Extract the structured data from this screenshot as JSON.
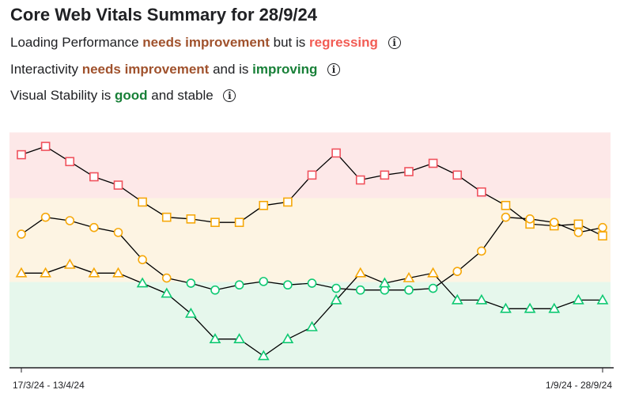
{
  "header": {
    "title": "Core Web Vitals Summary for 28/9/24"
  },
  "metrics": [
    {
      "label": "Loading Performance",
      "connector1": "",
      "status": "needs improvement",
      "status_color": "#a0522d",
      "connector2": "but is",
      "trend": "regressing",
      "trend_color": "#f25c54",
      "info_icon": "info-icon"
    },
    {
      "label": "Interactivity",
      "connector1": "",
      "status": "needs improvement",
      "status_color": "#a0522d",
      "connector2": "and is",
      "trend": "improving",
      "trend_color": "#188038",
      "info_icon": "info-icon"
    },
    {
      "label": "Visual Stability is",
      "connector1": "",
      "status": "good",
      "status_color": "#188038",
      "connector2": "and stable",
      "trend": "",
      "trend_color": "#202124",
      "info_icon": "info-icon"
    }
  ],
  "chart_data": {
    "type": "line",
    "x_range_labels": [
      "17/3/24 - 13/4/24",
      "1/9/24 - 28/9/24"
    ],
    "ylim": [
      0,
      100
    ],
    "bands": [
      {
        "from": 0,
        "to": 35,
        "color": "#e6f7ec"
      },
      {
        "from": 35,
        "to": 69.2,
        "color": "#fdf4e3"
      },
      {
        "from": 69.2,
        "to": 96,
        "color": "#fde8e8"
      }
    ],
    "status_colors": {
      "good": "#0ec972",
      "ni": "#f6a80a",
      "poor": "#f0525d"
    },
    "series": [
      {
        "marker": "square",
        "values": [
          86.9,
          90.3,
          84.1,
          77.9,
          74.5,
          67.6,
          61.4,
          60.7,
          59.3,
          59.3,
          66.2,
          67.6,
          78.6,
          87.6,
          76.6,
          78.6,
          80.0,
          83.4,
          78.6,
          71.7,
          66.2,
          58.6,
          57.9,
          58.6,
          53.8
        ],
        "status": [
          "poor",
          "poor",
          "poor",
          "poor",
          "poor",
          "ni",
          "ni",
          "ni",
          "ni",
          "ni",
          "ni",
          "ni",
          "poor",
          "poor",
          "poor",
          "poor",
          "poor",
          "poor",
          "poor",
          "poor",
          "ni",
          "ni",
          "ni",
          "ni",
          "ni"
        ]
      },
      {
        "marker": "circle",
        "values": [
          54.5,
          61.4,
          60.0,
          57.2,
          55.2,
          44.1,
          36.6,
          34.5,
          31.7,
          33.8,
          35.2,
          33.8,
          34.5,
          32.4,
          31.7,
          31.7,
          31.7,
          32.4,
          39.3,
          47.6,
          61.4,
          60.7,
          59.3,
          55.2,
          57.2
        ],
        "status": [
          "ni",
          "ni",
          "ni",
          "ni",
          "ni",
          "ni",
          "ni",
          "good",
          "good",
          "good",
          "good",
          "good",
          "good",
          "good",
          "good",
          "good",
          "good",
          "good",
          "ni",
          "ni",
          "ni",
          "ni",
          "ni",
          "ni",
          "ni"
        ]
      },
      {
        "marker": "triangle",
        "values": [
          38.6,
          38.6,
          42.1,
          38.6,
          38.6,
          34.5,
          30.3,
          22.1,
          11.7,
          11.7,
          4.8,
          11.7,
          16.6,
          27.6,
          38.6,
          34.5,
          36.6,
          38.6,
          27.6,
          27.6,
          24.1,
          24.1,
          24.1,
          27.6,
          27.6
        ],
        "status": [
          "ni",
          "ni",
          "ni",
          "ni",
          "ni",
          "good",
          "good",
          "good",
          "good",
          "good",
          "good",
          "good",
          "good",
          "good",
          "ni",
          "good",
          "ni",
          "ni",
          "good",
          "good",
          "good",
          "good",
          "good",
          "good",
          "good"
        ]
      }
    ]
  }
}
